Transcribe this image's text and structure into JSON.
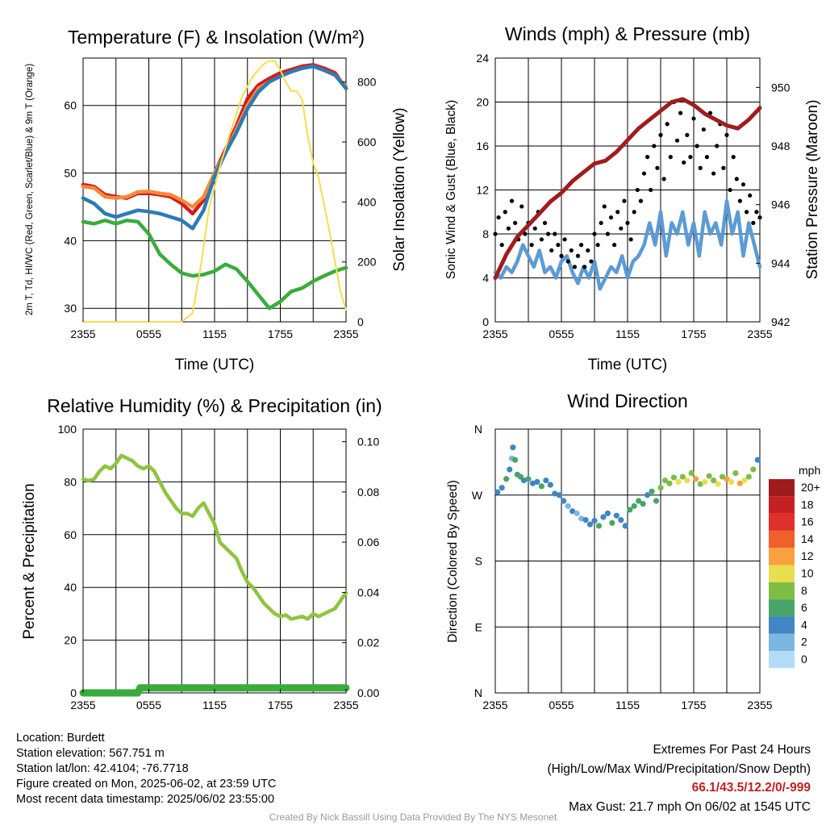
{
  "colors": {
    "temp": "#d7191c",
    "dewpoint": "#3aac3e",
    "heatindex": "#2c7bb6",
    "temp9m": "#f58a3a",
    "solar": "#f7dd4a",
    "wind": "#5b9bd5",
    "gust": "#000000",
    "pressure": "#a01d1d",
    "rh": "#8fc43f",
    "precip": "#3aac3e",
    "extremes": "#c21f1f",
    "credit": "#9a9a9a"
  },
  "time_ticks": [
    "2355",
    "0555",
    "1155",
    "1755",
    "2355"
  ],
  "info": {
    "location": "Location: Burdett",
    "elevation": "Station elevation: 567.751 m",
    "latlon": "Station lat/lon: 42.4104; -76.7718",
    "created": "Figure created on Mon, 2025-06-02, at 23:59 UTC",
    "recent": "Most recent data timestamp: 2025/06/02 23:55:00"
  },
  "extremes": {
    "title": "Extremes For Past 24 Hours",
    "subtitle": "(High/Low/Max Wind/Precipitation/Snow Depth)",
    "values": "66.1/43.5/12.2/0/-999",
    "max_gust": "Max Gust: 21.7 mph On 06/02 at 1545 UTC"
  },
  "credit": "Created By Nick Bassill Using Data Provided By The NYS Mesonet",
  "chart_data": [
    {
      "type": "line",
      "title": "Temperature (F) & Insolation (W/m²)",
      "xlabel": "Time (UTC)",
      "ylabel": "2m T, Td, HI/WC (Red, Green, Scarlet/Blue) & 9m T (Orange)",
      "y2label": "Solar Insolation (Yellow)",
      "xlim": [
        0,
        24
      ],
      "ylim": [
        28,
        67
      ],
      "y2lim": [
        0,
        880
      ],
      "yticks": [
        30,
        40,
        50,
        60
      ],
      "y2ticks": [
        0,
        200,
        400,
        600,
        800
      ],
      "series": [
        {
          "name": "2m T",
          "axis": "left",
          "color": "temp",
          "x": [
            0,
            1,
            2,
            3,
            4,
            5,
            6,
            7,
            8,
            9,
            10,
            11,
            12,
            13,
            14,
            15,
            16,
            17,
            18,
            19,
            20,
            21,
            22,
            23,
            24
          ],
          "y": [
            48.3,
            48,
            46.8,
            46.5,
            46.3,
            47,
            47,
            46.8,
            46.5,
            45.5,
            44,
            46,
            50,
            53.5,
            57,
            61,
            63,
            64,
            64.8,
            65.3,
            65.8,
            66,
            65.5,
            64.8,
            62.5
          ]
        },
        {
          "name": "9m T",
          "axis": "left",
          "color": "temp9m",
          "x": [
            0,
            1,
            2,
            3,
            4,
            5,
            6,
            7,
            8,
            9,
            10,
            11,
            12,
            13,
            14,
            15,
            16,
            17,
            18,
            19,
            20,
            21,
            22,
            23,
            24
          ],
          "y": [
            48,
            47.8,
            46.5,
            46.3,
            46.5,
            47.2,
            47.3,
            47,
            46.8,
            46,
            45,
            46.5,
            50,
            53,
            56.5,
            60,
            62.5,
            63.5,
            64.3,
            65,
            65.5,
            65.8,
            65.2,
            64.5,
            62.8
          ]
        },
        {
          "name": "HI/WC",
          "axis": "left",
          "color": "heatindex",
          "x": [
            0,
            1,
            2,
            3,
            4,
            5,
            6,
            7,
            8,
            9,
            10,
            11,
            12,
            13,
            14,
            15,
            16,
            17,
            18,
            19,
            20,
            21,
            22,
            23,
            24
          ],
          "y": [
            46.3,
            45.5,
            44,
            43.5,
            44,
            44.5,
            44.3,
            44,
            43.5,
            43,
            41.8,
            44.5,
            49.5,
            53,
            56,
            59.5,
            62,
            63.5,
            64.3,
            65,
            65.5,
            65.8,
            65.2,
            64.5,
            62.5
          ]
        },
        {
          "name": "2m Td",
          "axis": "left",
          "color": "dewpoint",
          "x": [
            0,
            1,
            2,
            3,
            4,
            5,
            6,
            7,
            8,
            9,
            10,
            11,
            12,
            13,
            14,
            15,
            16,
            17,
            18,
            19,
            20,
            21,
            22,
            23,
            24
          ],
          "y": [
            42.8,
            42.5,
            43,
            42.5,
            43,
            42.8,
            41,
            38,
            36.5,
            35.2,
            34.8,
            35,
            35.5,
            36.5,
            35.8,
            34,
            32,
            30,
            31,
            32.5,
            33,
            34,
            34.8,
            35.5,
            36
          ]
        },
        {
          "name": "Solar",
          "axis": "right",
          "color": "solar",
          "x": [
            0,
            3,
            6,
            9,
            10,
            10.8,
            11.5,
            12.5,
            13.5,
            14.5,
            15.5,
            16.5,
            17,
            17.5,
            18,
            18.5,
            19,
            19.5,
            20,
            20.5,
            21,
            21.5,
            22,
            22.5,
            23,
            23.5,
            24
          ],
          "y": [
            0,
            0,
            0,
            0,
            30,
            200,
            380,
            520,
            640,
            750,
            820,
            860,
            870,
            870,
            840,
            800,
            770,
            770,
            740,
            620,
            530,
            480,
            390,
            300,
            200,
            100,
            40
          ]
        }
      ]
    },
    {
      "type": "line",
      "title": "Winds (mph) & Pressure (mb)",
      "xlabel": "Time (UTC)",
      "ylabel": "Sonic Wind & Gust (Blue, Black)",
      "y2label": "Station Pressure (Maroon)",
      "xlim": [
        0,
        24
      ],
      "ylim": [
        0,
        24
      ],
      "y2lim": [
        942,
        951
      ],
      "yticks": [
        0,
        4,
        8,
        12,
        16,
        20,
        24
      ],
      "y2ticks": [
        942,
        944,
        946,
        948,
        950
      ],
      "series": [
        {
          "name": "Sonic Wind",
          "axis": "left",
          "color": "wind",
          "x": [
            0,
            0.5,
            1,
            1.5,
            2,
            2.5,
            3,
            3.5,
            4,
            4.5,
            5,
            5.5,
            6,
            6.5,
            7,
            7.5,
            8,
            8.5,
            9,
            9.5,
            10,
            10.5,
            11,
            11.5,
            12,
            12.5,
            13,
            13.5,
            14,
            14.5,
            15,
            15.5,
            16,
            16.5,
            17,
            17.5,
            18,
            18.5,
            19,
            19.5,
            20,
            20.5,
            21,
            21.5,
            22,
            22.5,
            23,
            23.5,
            24
          ],
          "y": [
            4.5,
            4,
            5,
            4.5,
            5.5,
            7,
            6,
            5,
            6.5,
            4.5,
            5,
            4,
            5.5,
            6,
            4.5,
            3.5,
            5,
            4,
            5.5,
            3,
            4,
            5,
            4.5,
            6,
            4,
            5.5,
            6,
            7,
            9,
            7,
            10,
            6,
            9,
            8,
            10,
            7,
            9,
            6,
            10,
            8,
            9,
            7,
            11,
            8,
            10,
            6,
            9,
            7,
            5
          ]
        },
        {
          "name": "Gust",
          "axis": "left",
          "color": "gust",
          "marker": "dot",
          "x": [
            0,
            0.3,
            0.6,
            0.9,
            1.2,
            1.5,
            1.8,
            2.1,
            2.4,
            2.7,
            3,
            3.3,
            3.6,
            3.9,
            4.2,
            4.5,
            4.8,
            5.1,
            5.4,
            5.7,
            6,
            6.3,
            6.6,
            6.9,
            7.2,
            7.5,
            7.8,
            8.1,
            8.4,
            8.7,
            9,
            9.3,
            9.6,
            9.9,
            10.2,
            10.5,
            10.8,
            11.1,
            11.4,
            11.7,
            12,
            12.3,
            12.6,
            12.9,
            13.2,
            13.5,
            13.8,
            14.1,
            14.4,
            14.7,
            15,
            15.3,
            15.6,
            15.9,
            16.2,
            16.5,
            16.8,
            17.1,
            17.4,
            17.7,
            18,
            18.3,
            18.6,
            18.9,
            19.2,
            19.5,
            19.8,
            20.1,
            20.4,
            20.7,
            21,
            21.3,
            21.6,
            21.9,
            22.2,
            22.5,
            22.8,
            23.1,
            23.4,
            23.7,
            24
          ],
          "y": [
            8,
            9.5,
            7,
            10,
            8.5,
            11,
            9,
            7.5,
            10.5,
            8,
            9,
            7,
            8.5,
            10,
            7.5,
            9,
            8,
            6.5,
            8,
            7,
            6,
            7.5,
            5.5,
            6.5,
            5,
            6,
            7,
            5,
            6.5,
            5.5,
            8,
            7,
            9,
            10.5,
            8,
            9.5,
            7,
            10,
            8.5,
            11,
            9,
            7.5,
            10,
            12,
            11,
            13.5,
            15,
            12,
            16,
            14,
            17,
            13,
            18,
            15,
            20,
            16.5,
            19,
            14.5,
            17,
            15,
            18.5,
            16,
            14,
            17.5,
            15,
            19,
            13.5,
            16,
            18,
            14,
            17,
            12,
            15,
            13,
            11,
            12.5,
            10,
            11.5,
            9,
            10,
            9.5
          ]
        },
        {
          "name": "Pressure",
          "axis": "right",
          "color": "pressure",
          "x": [
            0,
            1,
            2,
            3,
            4,
            5,
            6,
            7,
            8,
            9,
            10,
            11,
            12,
            13,
            14,
            15,
            16,
            17,
            18,
            19,
            20,
            21,
            22,
            23,
            24
          ],
          "y": [
            943.5,
            944.3,
            944.9,
            945.3,
            945.7,
            946.1,
            946.4,
            946.8,
            947.1,
            947.4,
            947.5,
            947.8,
            948.2,
            948.6,
            948.9,
            949.2,
            949.5,
            949.6,
            949.4,
            949.1,
            948.9,
            948.7,
            948.6,
            948.9,
            949.3
          ]
        }
      ]
    },
    {
      "type": "line",
      "title": "Relative Humidity (%) & Precipitation (in)",
      "xlabel": "",
      "ylabel": "Percent & Precipitation",
      "xlim": [
        0,
        24
      ],
      "ylim": [
        0,
        100
      ],
      "y2lim": [
        0,
        0.105
      ],
      "yticks": [
        0,
        20,
        40,
        60,
        80,
        100
      ],
      "y2ticks": [
        "0.00",
        "0.02",
        "0.04",
        "0.06",
        "0.08",
        "0.10"
      ],
      "series": [
        {
          "name": "RH",
          "axis": "left",
          "color": "rh",
          "x": [
            0,
            0.5,
            1,
            1.5,
            2,
            2.5,
            3,
            3.5,
            4,
            4.5,
            5,
            5.5,
            6,
            6.5,
            7,
            7.5,
            8,
            8.5,
            9,
            9.5,
            10,
            10.5,
            11,
            11.5,
            12,
            12.5,
            13,
            13.5,
            14,
            14.5,
            15,
            15.5,
            16,
            16.5,
            17,
            17.5,
            18,
            18.5,
            19,
            19.5,
            20,
            20.5,
            21,
            21.5,
            22,
            22.5,
            23,
            23.5,
            24
          ],
          "y": [
            81,
            80.5,
            81,
            84,
            86,
            85,
            87,
            90,
            89,
            88,
            86,
            85,
            86,
            84,
            80,
            76,
            73,
            70,
            68,
            68,
            67,
            70,
            72,
            68,
            64,
            57,
            55,
            53,
            51,
            46,
            42,
            40,
            37,
            34,
            32,
            30,
            29,
            29.5,
            28,
            28.5,
            29,
            28,
            30,
            29,
            30,
            31,
            32,
            35,
            38
          ]
        },
        {
          "name": "Precipitation",
          "axis": "right",
          "color": "precip",
          "x": [
            0,
            5,
            5.2,
            24
          ],
          "y": [
            0,
            0,
            0.002,
            0.002
          ]
        }
      ]
    },
    {
      "type": "scatter",
      "title": "Wind Direction",
      "ylabel": "Direction (Colored By Speed)",
      "xlim": [
        0,
        24
      ],
      "ylim": [
        0,
        360
      ],
      "yticklabels": [
        "N",
        "E",
        "S",
        "W",
        "N"
      ],
      "legend": {
        "title": "mph",
        "labels": [
          "20+",
          "18",
          "16",
          "14",
          "12",
          "10",
          "8",
          "6",
          "4",
          "2",
          "0"
        ],
        "colors": [
          "#a01c1c",
          "#c52125",
          "#e0302b",
          "#f0602d",
          "#f9a040",
          "#e8de50",
          "#7dbd44",
          "#47a56a",
          "#3f86c2",
          "#7bb7e0",
          "#b4ddf5"
        ]
      },
      "series": [
        {
          "name": "Direction",
          "x": [
            0.2,
            0.6,
            1,
            1.3,
            1.5,
            1.6,
            1.8,
            2,
            2.3,
            2.6,
            3,
            3.4,
            3.8,
            4.2,
            4.6,
            5,
            5.4,
            5.8,
            6.2,
            6.6,
            7,
            7.4,
            7.8,
            8.2,
            8.6,
            9,
            9.4,
            9.8,
            10.2,
            10.6,
            11,
            11.4,
            11.8,
            12.2,
            12.6,
            13,
            13.4,
            13.8,
            14.2,
            14.6,
            15,
            15.4,
            15.8,
            16.2,
            16.6,
            17,
            17.4,
            17.8,
            18.2,
            18.6,
            19,
            19.4,
            19.8,
            20.2,
            20.6,
            21,
            21.4,
            21.8,
            22.2,
            22.6,
            23,
            23.4,
            23.8
          ],
          "y": [
            274,
            280,
            292,
            305,
            320,
            335,
            318,
            298,
            295,
            290,
            292,
            286,
            288,
            282,
            290,
            284,
            272,
            270,
            262,
            255,
            248,
            245,
            238,
            236,
            230,
            235,
            228,
            240,
            245,
            232,
            242,
            236,
            228,
            250,
            255,
            262,
            258,
            270,
            275,
            262,
            280,
            290,
            286,
            294,
            288,
            295,
            290,
            300,
            292,
            285,
            288,
            296,
            290,
            285,
            295,
            292,
            288,
            300,
            286,
            290,
            295,
            305,
            318
          ],
          "speed": [
            4,
            4,
            6,
            4,
            2,
            4,
            6,
            6,
            6,
            4,
            6,
            4,
            4,
            6,
            4,
            4,
            4,
            4,
            4,
            2,
            4,
            2,
            2,
            4,
            4,
            4,
            6,
            4,
            4,
            6,
            4,
            4,
            4,
            6,
            6,
            6,
            6,
            4,
            6,
            6,
            8,
            8,
            8,
            8,
            10,
            8,
            10,
            8,
            12,
            8,
            10,
            8,
            8,
            10,
            8,
            12,
            10,
            8,
            12,
            10,
            8,
            8,
            4
          ]
        }
      ]
    }
  ]
}
